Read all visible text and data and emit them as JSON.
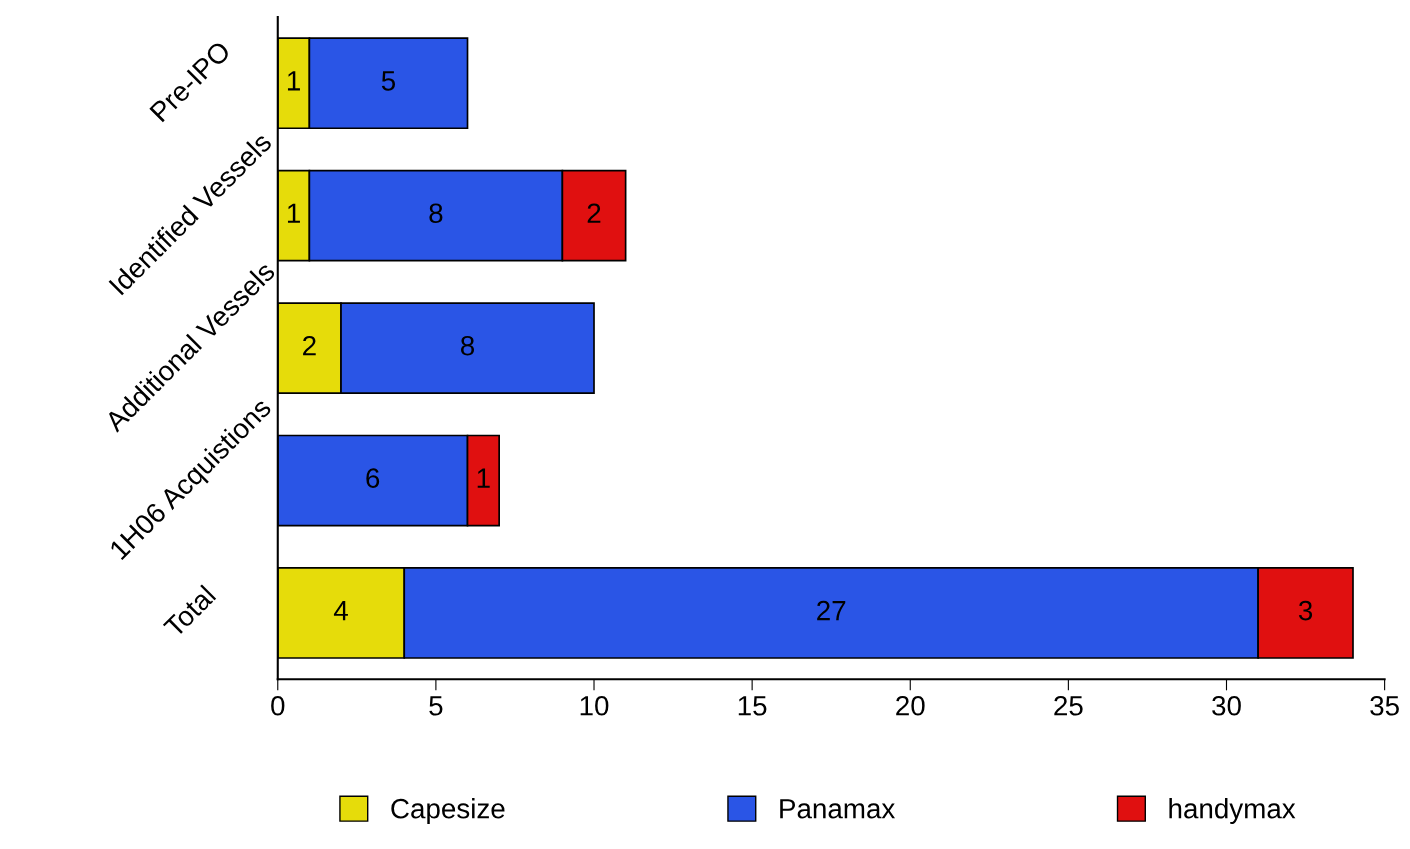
{
  "chart_data": {
    "type": "bar",
    "orientation": "horizontal",
    "stacked": true,
    "categories": [
      "Pre-IPO",
      "Identified Vessels",
      "Additional Vessels",
      "1H06 Acquistions",
      "Total"
    ],
    "series": [
      {
        "name": "Capesize",
        "color": "#e6dc0a",
        "values": [
          1,
          1,
          2,
          0,
          4
        ],
        "value_labels": [
          "1",
          "1",
          "2",
          null,
          "4"
        ]
      },
      {
        "name": "Panamax",
        "color": "#2a55e6",
        "values": [
          5,
          8,
          8,
          6,
          27
        ]
      },
      {
        "name": "handymax",
        "color": "#e01010",
        "values": [
          0,
          2,
          0,
          1,
          3
        ],
        "value_labels": [
          null,
          "2",
          null,
          "1",
          "3"
        ]
      }
    ],
    "xlim": [
      0,
      35
    ],
    "xticks": [
      0,
      5,
      10,
      15,
      20,
      25,
      30,
      35
    ],
    "data_labels": true,
    "grid": false,
    "legend": "bottom"
  }
}
